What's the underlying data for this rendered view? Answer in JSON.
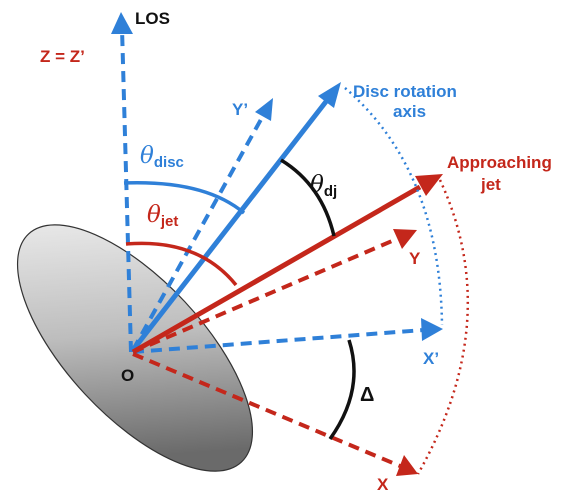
{
  "labels": {
    "los": "LOS",
    "z_axis": "Z = Z’",
    "y_prime": "Y’",
    "disc_axis_line1": "Disc rotation",
    "disc_axis_line2": "axis",
    "jet_line1": "Approaching",
    "jet_line2": "jet",
    "y": "Y",
    "x_prime": "X’",
    "x": "X",
    "origin": "O",
    "delta": "Δ",
    "theta_symbol": "θ",
    "theta_disc_sub": "disc",
    "theta_jet_sub": "jet",
    "theta_dj_sub": "dj"
  },
  "colors": {
    "blue": "#2f80d8",
    "red": "#c4271b",
    "black": "#111111",
    "disc_light": "#f2f2f2",
    "disc_dark": "#6a6a6a"
  }
}
